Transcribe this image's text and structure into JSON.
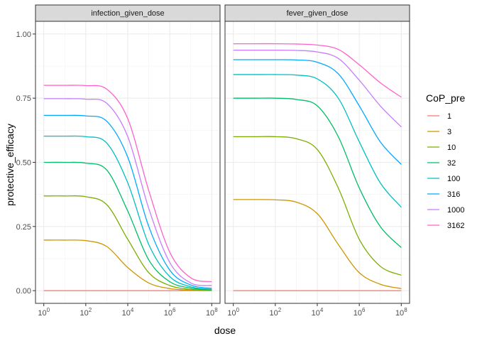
{
  "chart_data": {
    "type": "line",
    "xlabel": "dose",
    "ylabel": "protective_efficacy",
    "x_scale": "log10",
    "xlim": [
      1,
      100000000
    ],
    "ylim": [
      0,
      1
    ],
    "x_ticks": [
      {
        "value": 1,
        "base": "10",
        "exp": "0"
      },
      {
        "value": 100,
        "base": "10",
        "exp": "2"
      },
      {
        "value": 10000,
        "base": "10",
        "exp": "4"
      },
      {
        "value": 1000000,
        "base": "10",
        "exp": "6"
      },
      {
        "value": 100000000,
        "base": "10",
        "exp": "8"
      }
    ],
    "y_ticks": [
      {
        "value": 0,
        "label": "0.00"
      },
      {
        "value": 0.25,
        "label": "0.25"
      },
      {
        "value": 0.5,
        "label": "0.50"
      },
      {
        "value": 0.75,
        "label": "0.75"
      },
      {
        "value": 1,
        "label": "1.00"
      }
    ],
    "grid": true,
    "legend": {
      "title": "CoP_pre",
      "placement": "right"
    },
    "x": [
      1,
      10,
      100,
      1000,
      10000,
      100000,
      1000000,
      10000000,
      100000000
    ],
    "panels": [
      {
        "title": "infection_given_dose",
        "series": [
          {
            "name": "1",
            "color": "#F8766D",
            "values": [
              0,
              0,
              0,
              0,
              0,
              0,
              0,
              0,
              0
            ]
          },
          {
            "name": "3",
            "color": "#CD9600",
            "values": [
              0.197,
              0.197,
              0.195,
              0.172,
              0.09,
              0.03,
              0.008,
              0.002,
              0.001
            ]
          },
          {
            "name": "10",
            "color": "#7CAE00",
            "values": [
              0.369,
              0.369,
              0.366,
              0.335,
              0.2,
              0.07,
              0.02,
              0.005,
              0.002
            ]
          },
          {
            "name": "32",
            "color": "#00BE67",
            "values": [
              0.5,
              0.5,
              0.497,
              0.47,
              0.31,
              0.12,
              0.035,
              0.01,
              0.003
            ]
          },
          {
            "name": "100",
            "color": "#00BFC4",
            "values": [
              0.602,
              0.602,
              0.6,
              0.575,
              0.42,
              0.18,
              0.055,
              0.015,
              0.005
            ]
          },
          {
            "name": "316",
            "color": "#00A9FF",
            "values": [
              0.683,
              0.683,
              0.681,
              0.66,
              0.52,
              0.25,
              0.08,
              0.022,
              0.009
            ]
          },
          {
            "name": "1000",
            "color": "#C77CFF",
            "values": [
              0.748,
              0.748,
              0.746,
              0.73,
              0.6,
              0.32,
              0.11,
              0.03,
              0.02
            ]
          },
          {
            "name": "3162",
            "color": "#FF61CC",
            "values": [
              0.8,
              0.8,
              0.799,
              0.785,
              0.67,
              0.39,
              0.15,
              0.05,
              0.035
            ]
          }
        ]
      },
      {
        "title": "fever_given_dose",
        "series": [
          {
            "name": "1",
            "color": "#F8766D",
            "values": [
              0,
              0,
              0,
              0,
              0,
              0,
              0,
              0,
              0
            ]
          },
          {
            "name": "3",
            "color": "#CD9600",
            "values": [
              0.355,
              0.355,
              0.354,
              0.345,
              0.3,
              0.18,
              0.07,
              0.025,
              0.008
            ]
          },
          {
            "name": "10",
            "color": "#7CAE00",
            "values": [
              0.6,
              0.6,
              0.6,
              0.592,
              0.55,
              0.4,
              0.2,
              0.095,
              0.06
            ]
          },
          {
            "name": "32",
            "color": "#00BE67",
            "values": [
              0.75,
              0.75,
              0.75,
              0.745,
              0.72,
              0.6,
              0.4,
              0.25,
              0.168
            ]
          },
          {
            "name": "100",
            "color": "#00BFC4",
            "values": [
              0.842,
              0.842,
              0.842,
              0.84,
              0.825,
              0.75,
              0.58,
              0.42,
              0.325
            ]
          },
          {
            "name": "316",
            "color": "#00A9FF",
            "values": [
              0.9,
              0.9,
              0.9,
              0.899,
              0.89,
              0.845,
              0.72,
              0.58,
              0.492
            ]
          },
          {
            "name": "1000",
            "color": "#C77CFF",
            "values": [
              0.937,
              0.937,
              0.937,
              0.936,
              0.93,
              0.905,
              0.82,
              0.72,
              0.638
            ]
          },
          {
            "name": "3162",
            "color": "#FF61CC",
            "values": [
              0.962,
              0.962,
              0.962,
              0.961,
              0.957,
              0.94,
              0.88,
              0.81,
              0.754
            ]
          }
        ]
      }
    ]
  }
}
